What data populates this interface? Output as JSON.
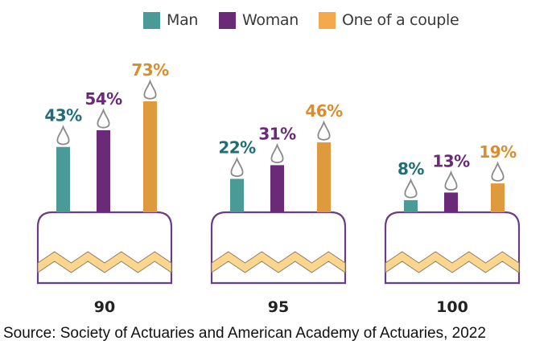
{
  "chart_data": {
    "type": "bar",
    "title": "",
    "xlabel": "",
    "ylabel": "",
    "ylim": [
      0,
      100
    ],
    "grid": false,
    "legend_position": "top",
    "categories": [
      "90",
      "95",
      "100"
    ],
    "series": [
      {
        "name": "Man",
        "color": "#4a9a98",
        "label_color": "#1f6e78",
        "values": [
          43,
          22,
          8
        ]
      },
      {
        "name": "Woman",
        "color": "#6a2a78",
        "label_color": "#6a2a78",
        "values": [
          54,
          31,
          13
        ]
      },
      {
        "name": "One of a couple",
        "color": "#e09a3e",
        "label_color": "#d98d2e",
        "values": [
          73,
          46,
          19
        ]
      }
    ],
    "value_suffix": "%",
    "decoration": {
      "style": "birthday-cake",
      "cake_outline_color": "#6a3d84",
      "cake_wave_color": "#fcd68c",
      "flame_outline_color": "#8a8a8a"
    }
  },
  "legend": {
    "items": [
      {
        "label": "Man",
        "color": "#4a9a98"
      },
      {
        "label": "Woman",
        "color": "#6a2a78"
      },
      {
        "label": "One of a couple",
        "color": "#f4aa4c"
      }
    ]
  },
  "source": "Source: Society of Actuaries and American Academy of Actuaries, 2022"
}
